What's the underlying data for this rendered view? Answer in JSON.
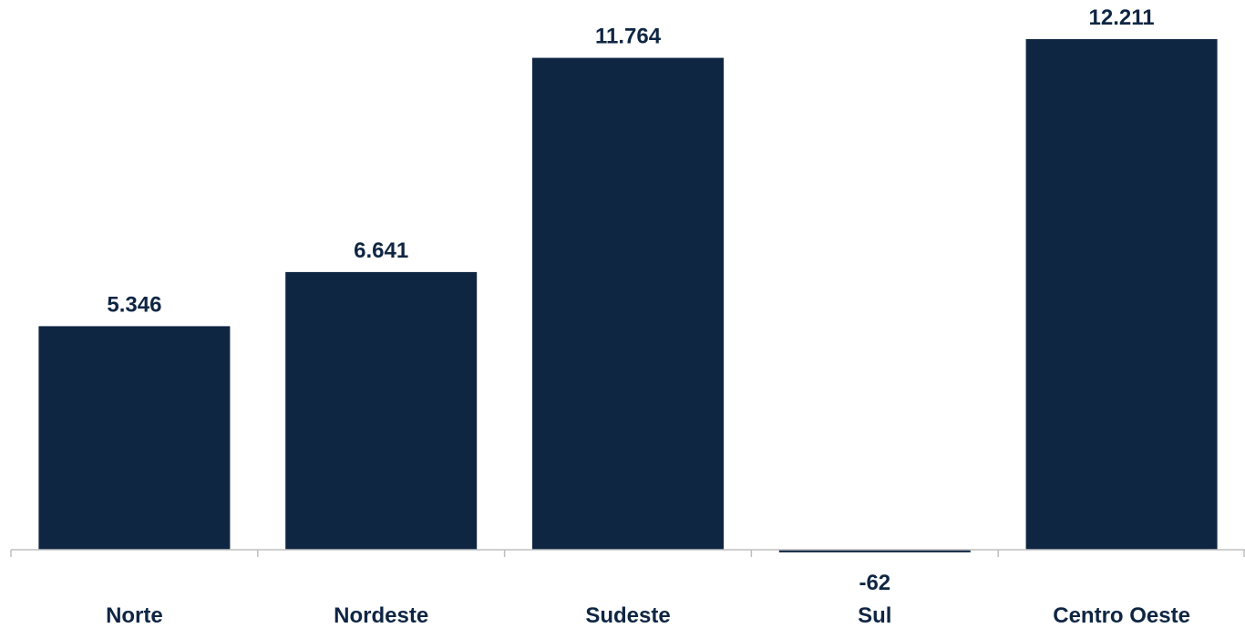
{
  "colors": {
    "bar": "#0f2643",
    "text": "#0f2643",
    "axis": "#bfbfbf",
    "background": "#ffffff"
  },
  "chart_data": {
    "type": "bar",
    "categories": [
      "Norte",
      "Nordeste",
      "Sudeste",
      "Sul",
      "Centro Oeste"
    ],
    "values": [
      5346,
      6641,
      11764,
      -62,
      12211
    ],
    "value_labels": [
      "5.346",
      "6.641",
      "11.764",
      "-62",
      "12.211"
    ],
    "title": "",
    "xlabel": "",
    "ylabel": "",
    "ylim": [
      -62,
      12211
    ],
    "grid": false,
    "legend": "none"
  }
}
